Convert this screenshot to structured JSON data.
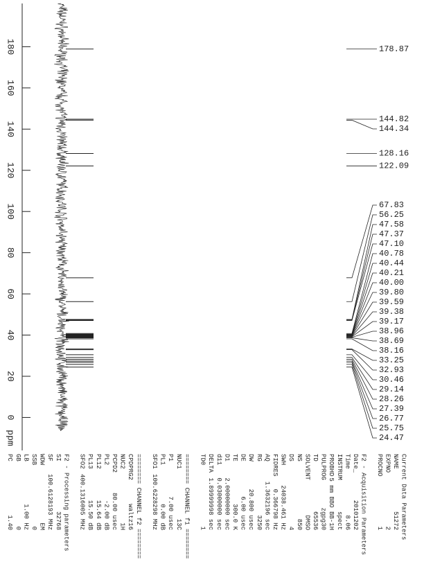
{
  "chart_data": {
    "type": "nmr",
    "x_label": "ppm",
    "xlim": [
      -16,
      201
    ],
    "xticks": [
      0,
      20,
      40,
      60,
      80,
      100,
      120,
      140,
      160,
      180
    ],
    "peaks": {
      "values": [
        178.87,
        144.82,
        144.34,
        128.16,
        122.09,
        67.83,
        56.25,
        47.58,
        47.37,
        47.1,
        40.78,
        40.44,
        40.21,
        40.0,
        39.8,
        39.59,
        39.38,
        39.17,
        38.96,
        38.69,
        38.16,
        33.25,
        32.93,
        30.46,
        29.14,
        28.26,
        27.39,
        26.77,
        25.75,
        24.47
      ],
      "value_labels": [
        "178.87",
        "144.82",
        "144.34",
        "128.16",
        "122.09",
        "67.83",
        "56.25",
        "47.58",
        "47.37",
        "47.10",
        "40.78",
        "40.44",
        "40.21",
        "40.00",
        "39.80",
        "39.59",
        "39.38",
        "39.17",
        "38.96",
        "38.69",
        "38.16",
        "33.25",
        "32.93",
        "30.46",
        "29.14",
        "28.26",
        "27.39",
        "26.77",
        "25.75",
        "24.47"
      ]
    },
    "parameters": [
      {
        "title": "Current Data Parameters",
        "rows": [
          [
            "NAME",
            "51272"
          ],
          [
            "EXPNO",
            "2"
          ],
          [
            "PROCNO",
            "1"
          ]
        ]
      },
      {
        "title": "F2 - Acquisition Parameters",
        "rows": [
          [
            "Date_",
            "20101202"
          ],
          [
            "Time",
            "8.06"
          ],
          [
            "INSTRUM",
            "spect"
          ],
          [
            "PROBHD",
            "5 mm BBO BB-1H"
          ],
          [
            "PULPROG",
            "zgpg30"
          ],
          [
            "TD",
            "65536"
          ],
          [
            "SOLVENT",
            "DMSO"
          ],
          [
            "NS",
            "850"
          ],
          [
            "DS",
            "4"
          ],
          [
            "SWH",
            "24038.461 Hz"
          ],
          [
            "FIDRES",
            "0.366798 Hz"
          ],
          [
            "AQ",
            "1.3632196 sec"
          ],
          [
            "RG",
            "3250"
          ],
          [
            "DW",
            "20.800 usec"
          ],
          [
            "DE",
            "6.00 usec"
          ],
          [
            "TE",
            "300.0 K"
          ],
          [
            "D1",
            "2.00000000 sec"
          ],
          [
            "d11",
            "0.03000000 sec"
          ],
          [
            "DELTA",
            "1.89999998 sec"
          ],
          [
            "TD0",
            "1"
          ]
        ]
      },
      {
        "title": "======== CHANNEL f1 ========",
        "rows": [
          [
            "NUC1",
            "13C"
          ],
          [
            "P1",
            "7.00 usec"
          ],
          [
            "PL1",
            "0.00 dB"
          ],
          [
            "SFO1",
            "100.6228298 MHz"
          ]
        ]
      },
      {
        "title": "======== CHANNEL f2 ========",
        "rows": [
          [
            "CPDPRG2",
            "waltz16"
          ],
          [
            "NUC2",
            "1H"
          ],
          [
            "PCPD2",
            "80.00 usec"
          ],
          [
            "PL2",
            "-2.00 dB"
          ],
          [
            "PL12",
            "15.64 dB"
          ],
          [
            "PL13",
            "15.50 dB"
          ],
          [
            "SFO2",
            "400.1316005 MHz"
          ]
        ]
      },
      {
        "title": "F2 - Processing parameters",
        "rows": [
          [
            "SI",
            "32768"
          ],
          [
            "SF",
            "100.6128193 MHz"
          ],
          [
            "WDW",
            "EM"
          ],
          [
            "SSB",
            "0"
          ],
          [
            "LB",
            "1.00 Hz"
          ],
          [
            "GB",
            "0"
          ],
          [
            "PC",
            "1.40"
          ]
        ]
      }
    ]
  }
}
